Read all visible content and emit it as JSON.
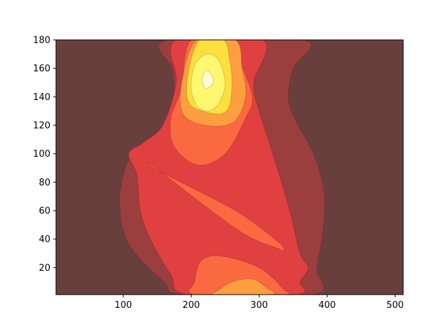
{
  "chart_data": {
    "type": "contour",
    "title": "",
    "xlabel": "",
    "ylabel": "",
    "xlim": [
      1,
      512
    ],
    "ylim": [
      1,
      180
    ],
    "x_ticks": [
      100,
      200,
      300,
      400,
      500
    ],
    "y_ticks": [
      20,
      40,
      60,
      80,
      100,
      120,
      140,
      160,
      180
    ],
    "colormap": "hot",
    "grid": false,
    "levels": [
      {
        "level": 0,
        "color": "#693f3d"
      },
      {
        "level": 1,
        "color": "#9a3e3e"
      },
      {
        "level": 2,
        "color": "#e04040"
      },
      {
        "level": 3,
        "color": "#fb6940"
      },
      {
        "level": 4,
        "color": "#fd9f40"
      },
      {
        "level": 5,
        "color": "#fddf40"
      },
      {
        "level": 6,
        "color": "#fdf870"
      },
      {
        "level": 7,
        "color": "#fdfdd0"
      }
    ],
    "regions": [
      {
        "level": 1,
        "points": [
          [
            165,
            180
          ],
          [
            172,
            160
          ],
          [
            175,
            145
          ],
          [
            168,
            125
          ],
          [
            150,
            110
          ],
          [
            120,
            105
          ],
          [
            100,
            85
          ],
          [
            95,
            60
          ],
          [
            110,
            35
          ],
          [
            160,
            10
          ],
          [
            190,
            1
          ],
          [
            380,
            1
          ],
          [
            385,
            20
          ],
          [
            395,
            50
          ],
          [
            395,
            75
          ],
          [
            380,
            100
          ],
          [
            352,
            125
          ],
          [
            343,
            140
          ],
          [
            350,
            160
          ],
          [
            366,
            180
          ]
        ]
      },
      {
        "level": 2,
        "points": [
          [
            178,
            180
          ],
          [
            178,
            150
          ],
          [
            158,
            120
          ],
          [
            130,
            108
          ],
          [
            108,
            100
          ],
          [
            120,
            85
          ],
          [
            125,
            60
          ],
          [
            140,
            40
          ],
          [
            170,
            15
          ],
          [
            195,
            1
          ],
          [
            355,
            1
          ],
          [
            360,
            10
          ],
          [
            372,
            20
          ],
          [
            360,
            30
          ],
          [
            345,
            60
          ],
          [
            320,
            100
          ],
          [
            300,
            130
          ],
          [
            292,
            150
          ],
          [
            305,
            180
          ]
        ]
      },
      {
        "level": 3,
        "points": [
          [
            200,
            180
          ],
          [
            185,
            145
          ],
          [
            170,
            125
          ],
          [
            175,
            105
          ],
          [
            210,
            92
          ],
          [
            250,
            100
          ],
          [
            280,
            125
          ],
          [
            290,
            140
          ],
          [
            272,
            165
          ],
          [
            262,
            180
          ]
        ]
      },
      {
        "level": 3,
        "points": [
          [
            142,
            93
          ],
          [
            148,
            90
          ],
          [
            270,
            46
          ],
          [
            330,
            33
          ],
          [
            336,
            31
          ],
          [
            328,
            38
          ],
          [
            265,
            60
          ],
          [
            152,
            88
          ]
        ]
      },
      {
        "level": 3,
        "points": [
          [
            205,
            10
          ],
          [
            215,
            25
          ],
          [
            245,
            28
          ],
          [
            300,
            20
          ],
          [
            335,
            5
          ],
          [
            335,
            1
          ],
          [
            207,
            1
          ]
        ]
      },
      {
        "level": 4,
        "points": [
          [
            208,
            180
          ],
          [
            186,
            150
          ],
          [
            188,
            128
          ],
          [
            220,
            120
          ],
          [
            262,
            122
          ],
          [
            280,
            140
          ],
          [
            275,
            160
          ],
          [
            265,
            180
          ]
        ]
      },
      {
        "level": 4,
        "points": [
          [
            240,
            4
          ],
          [
            260,
            10
          ],
          [
            290,
            12
          ],
          [
            310,
            6
          ],
          [
            318,
            1
          ],
          [
            237,
            1
          ]
        ]
      },
      {
        "level": 5,
        "points": [
          [
            212,
            180
          ],
          [
            195,
            155
          ],
          [
            198,
            135
          ],
          [
            235,
            128
          ],
          [
            255,
            132
          ],
          [
            260,
            150
          ],
          [
            257,
            165
          ],
          [
            248,
            180
          ]
        ]
      },
      {
        "level": 6,
        "points": [
          [
            205,
            162
          ],
          [
            200,
            145
          ],
          [
            212,
            132
          ],
          [
            235,
            132
          ],
          [
            250,
            148
          ],
          [
            240,
            166
          ],
          [
            222,
            170
          ]
        ]
      },
      {
        "level": 7,
        "points": [
          [
            221,
            158
          ],
          [
            216,
            152
          ],
          [
            221,
            146
          ],
          [
            230,
            148
          ],
          [
            233,
            152
          ],
          [
            228,
            157
          ]
        ]
      }
    ]
  }
}
